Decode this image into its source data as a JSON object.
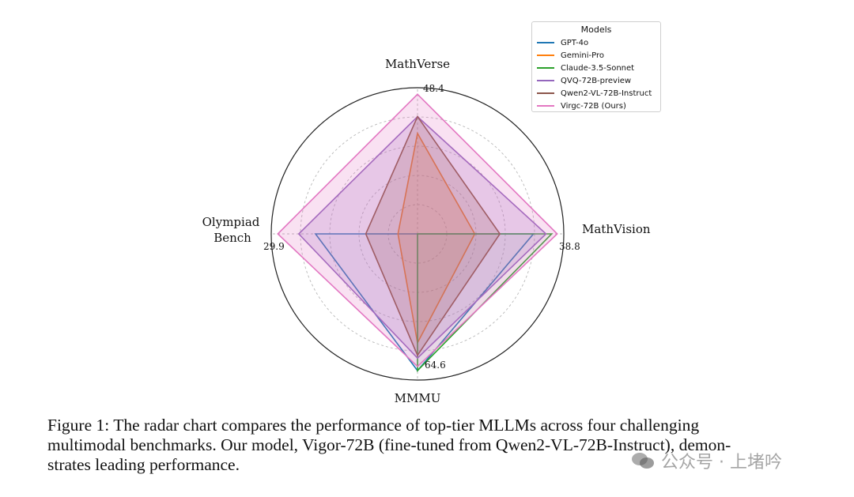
{
  "chart_data": {
    "type": "radar",
    "legend_title": "Models",
    "axes": [
      {
        "name": "MathVerse",
        "max": 48.4,
        "max_label": "48.4",
        "position": "top"
      },
      {
        "name": "MathVision",
        "max": 38.8,
        "max_label": "38.8",
        "position": "right"
      },
      {
        "name": "MMMU",
        "max": 64.6,
        "max_label": "64.6",
        "position": "bottom"
      },
      {
        "name_lines": [
          "Olympiad",
          "Bench"
        ],
        "name": "Olympiad Bench",
        "max": 29.9,
        "max_label": "29.9",
        "position": "left"
      }
    ],
    "series": [
      {
        "name": "GPT-4o",
        "color": "#1f77b4",
        "values": [
          0.0,
          0.83,
          0.98,
          0.73
        ],
        "fill": false
      },
      {
        "name": "Gemini-Pro",
        "color": "#ff7f0e",
        "values": [
          0.72,
          0.41,
          0.78,
          0.14
        ],
        "fill": true
      },
      {
        "name": "Claude-3.5-Sonnet",
        "color": "#2ca02c",
        "values": [
          0.0,
          0.96,
          0.98,
          0.0
        ],
        "fill": false
      },
      {
        "name": "QVQ-72B-preview",
        "color": "#9467bd",
        "values": [
          0.84,
          0.92,
          0.89,
          0.85
        ],
        "fill": true
      },
      {
        "name": "Qwen2-VL-72B-Instruct",
        "color": "#8c564b",
        "values": [
          0.84,
          0.59,
          0.87,
          0.37
        ],
        "fill": true
      },
      {
        "name": "Virgc-72B (Ours)",
        "color": "#e377c2",
        "values": [
          1.0,
          1.0,
          0.95,
          1.0
        ],
        "fill": true
      }
    ],
    "grid": "dashed concentric circles"
  },
  "caption": {
    "line1": "Figure 1: The radar chart compares the performance of top-tier MLLMs across four challenging",
    "line2": "multimodal benchmarks. Our model, Vigor-72B (fine-tuned from Qwen2-VL-72B-Instruct), demon-",
    "line3": "strates leading performance."
  },
  "watermark": {
    "text": "公众号 · 上堵吟",
    "icon": "wechat-icon"
  }
}
